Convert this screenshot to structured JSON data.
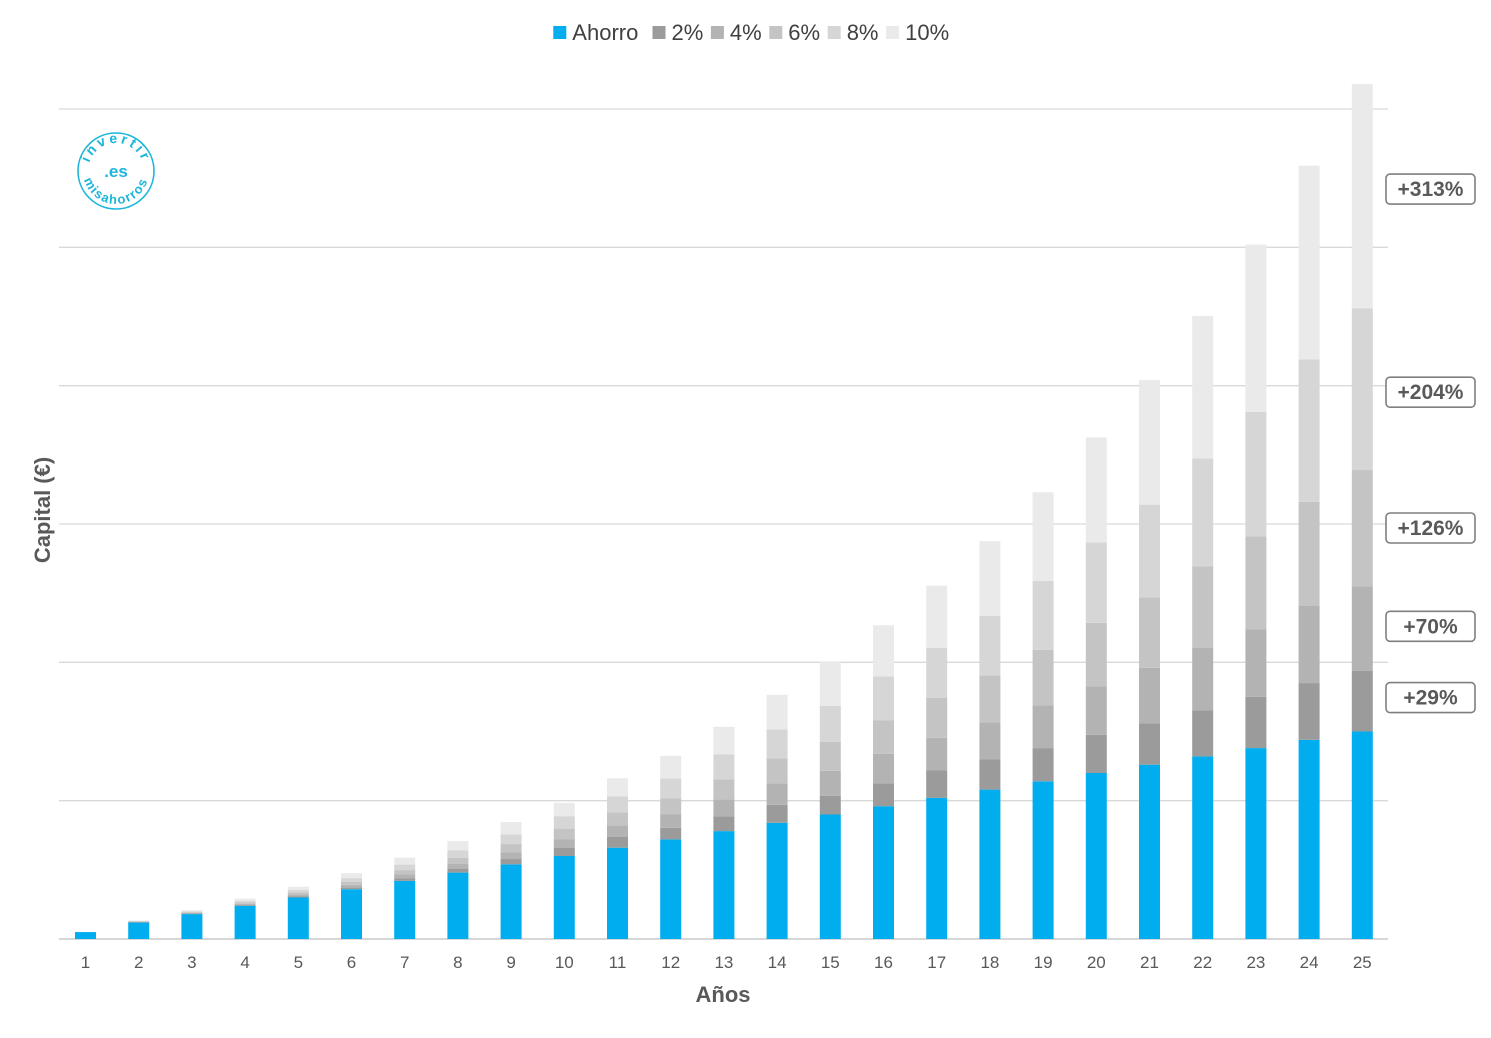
{
  "colors": {
    "ahorro": "#00AEEF",
    "r2": "#9B9B9B",
    "r4": "#B3B3B3",
    "r6": "#C4C4C4",
    "r8": "#D6D6D6",
    "r10": "#EAEAEA",
    "grid": "#D9D9D9",
    "axis_text": "#595959",
    "logo": "#1CB6DB"
  },
  "logo": {
    "top_text": "invertir",
    "center_text": ".es",
    "bottom_text": "misahorros"
  },
  "chart_data": {
    "type": "bar",
    "stacked": true,
    "title": "",
    "xlabel": "Años",
    "ylabel": "Capital (€)",
    "ylim": [
      0,
      30
    ],
    "y_tick_labels_shown": false,
    "grid": true,
    "legend_position": "top",
    "categories": [
      "1",
      "2",
      "3",
      "4",
      "5",
      "6",
      "7",
      "8",
      "9",
      "10",
      "11",
      "12",
      "13",
      "14",
      "15",
      "16",
      "17",
      "18",
      "19",
      "20",
      "21",
      "22",
      "23",
      "24",
      "25"
    ],
    "series": [
      {
        "name": "Ahorro",
        "color_key": "ahorro",
        "values": [
          0.25,
          0.6,
          0.9,
          1.2,
          1.5,
          1.8,
          2.1,
          2.4,
          2.7,
          3.0,
          3.3,
          3.6,
          3.9,
          4.2,
          4.5,
          4.8,
          5.1,
          5.4,
          5.7,
          6.0,
          6.3,
          6.6,
          6.9,
          7.2,
          7.5
        ]
      },
      {
        "name": "2%",
        "color_key": "r2",
        "values": [
          0.0,
          0.01,
          0.02,
          0.03,
          0.05,
          0.07,
          0.1,
          0.13,
          0.19,
          0.29,
          0.4,
          0.42,
          0.53,
          0.65,
          0.68,
          0.83,
          0.99,
          1.1,
          1.2,
          1.38,
          1.5,
          1.67,
          1.85,
          2.05,
          2.2
        ]
      },
      {
        "name": "4%",
        "color_key": "r4",
        "values": [
          0.0,
          0.01,
          0.02,
          0.04,
          0.06,
          0.09,
          0.13,
          0.18,
          0.24,
          0.32,
          0.4,
          0.48,
          0.62,
          0.78,
          0.9,
          1.06,
          1.18,
          1.33,
          1.55,
          1.75,
          2.0,
          2.25,
          2.45,
          2.8,
          3.05
        ]
      },
      {
        "name": "6%",
        "color_key": "r6",
        "values": [
          0.0,
          0.01,
          0.03,
          0.05,
          0.07,
          0.11,
          0.16,
          0.22,
          0.3,
          0.38,
          0.48,
          0.58,
          0.72,
          0.9,
          1.05,
          1.22,
          1.45,
          1.7,
          2.0,
          2.3,
          2.55,
          2.95,
          3.35,
          3.75,
          4.2
        ]
      },
      {
        "name": "8%",
        "color_key": "r8",
        "values": [
          0.0,
          0.02,
          0.03,
          0.06,
          0.09,
          0.13,
          0.2,
          0.27,
          0.35,
          0.45,
          0.58,
          0.72,
          0.9,
          1.05,
          1.3,
          1.58,
          1.8,
          2.15,
          2.5,
          2.9,
          3.35,
          3.9,
          4.5,
          5.15,
          5.85
        ]
      },
      {
        "name": "10%",
        "color_key": "r10",
        "values": [
          0.0,
          0.02,
          0.04,
          0.08,
          0.12,
          0.18,
          0.25,
          0.34,
          0.45,
          0.48,
          0.65,
          0.82,
          1.0,
          1.25,
          1.58,
          1.85,
          2.25,
          2.7,
          3.2,
          3.8,
          4.5,
          5.15,
          6.05,
          7.0,
          8.1
        ]
      }
    ],
    "annotations": [
      {
        "label": "+29%",
        "series": "2%"
      },
      {
        "label": "+70%",
        "series": "4%"
      },
      {
        "label": "+126%",
        "series": "6%"
      },
      {
        "label": "+204%",
        "series": "8%"
      },
      {
        "label": "+313%",
        "series": "10%"
      }
    ]
  }
}
